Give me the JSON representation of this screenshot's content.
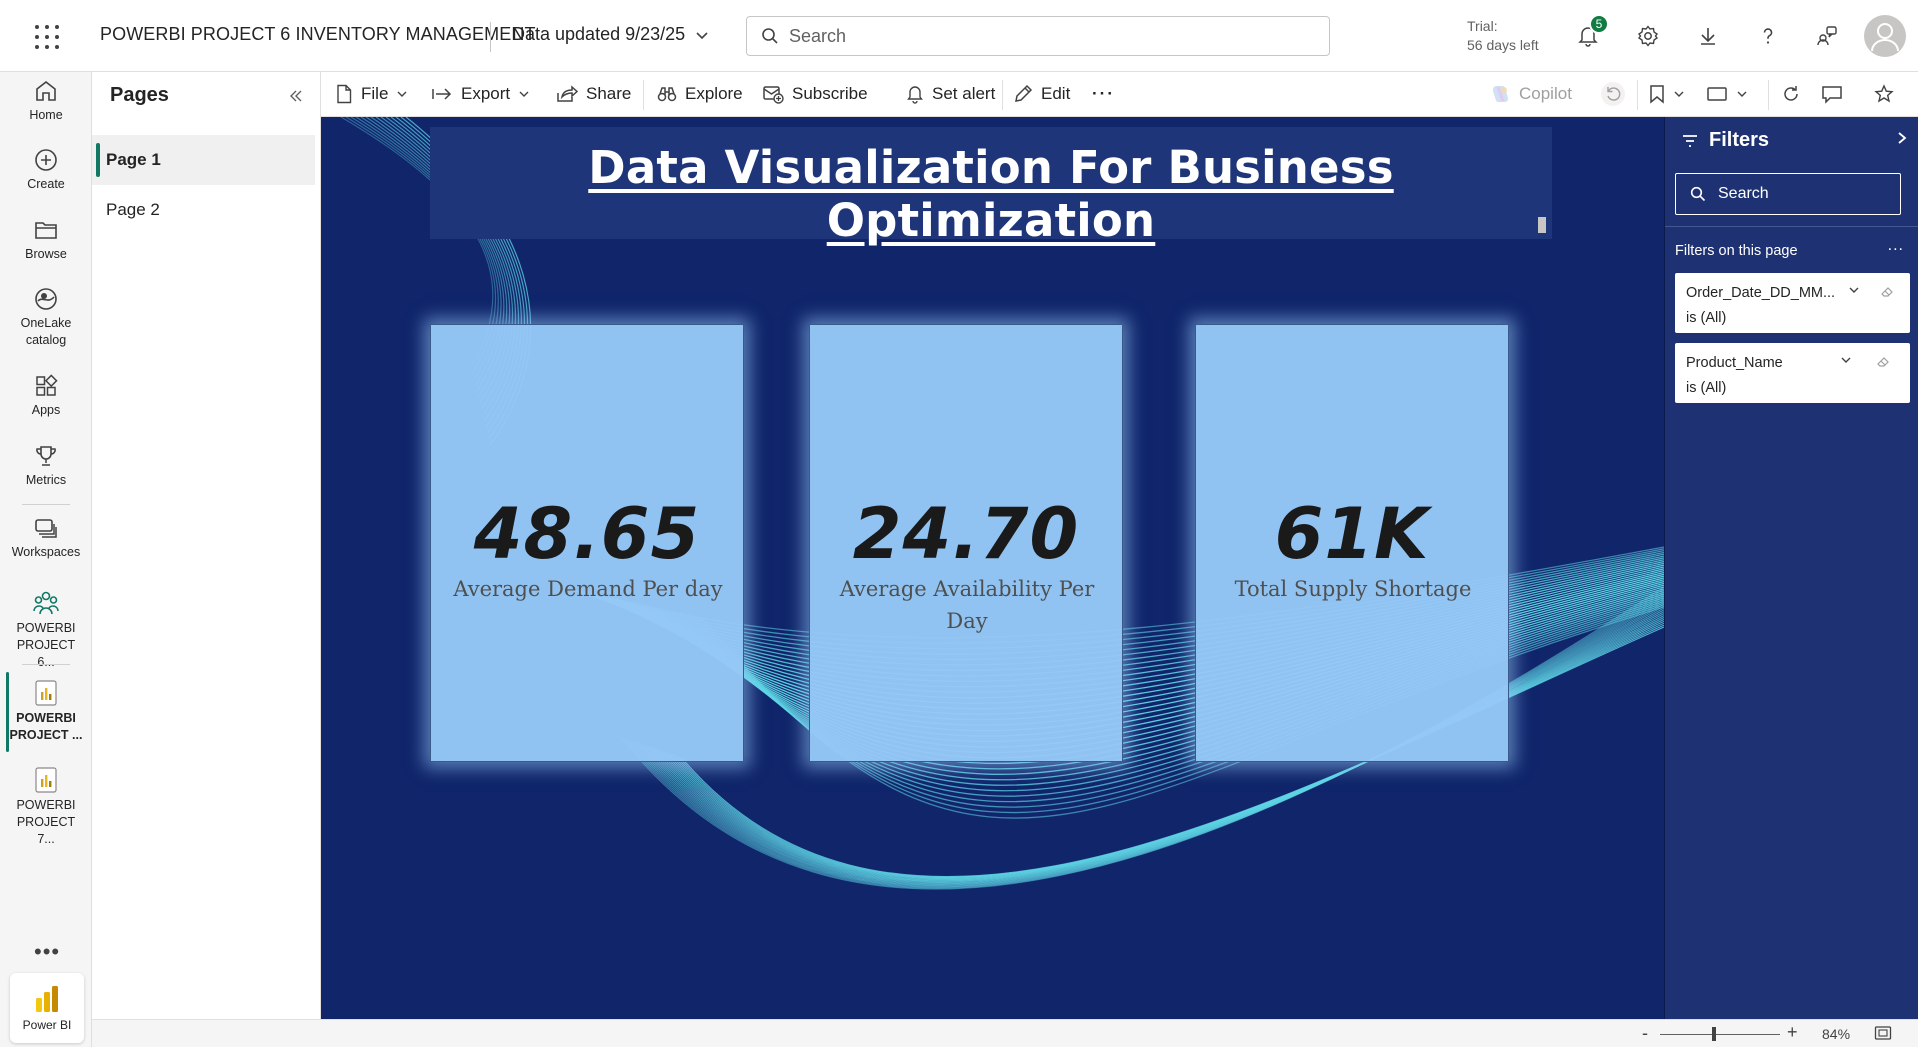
{
  "header": {
    "app_title": "POWERBI PROJECT 6 INVENTORY MANAGEMENT",
    "data_updated": "Data updated 9/23/25",
    "search_placeholder": "Search",
    "trial_label": "Trial:",
    "trial_days": "56 days left",
    "notification_count": "5"
  },
  "rail": {
    "items": [
      {
        "label": "Home",
        "icon": "home-icon"
      },
      {
        "label": "Create",
        "icon": "plus-circle-icon"
      },
      {
        "label": "Browse",
        "icon": "folder-icon"
      },
      {
        "label": "OneLake catalog",
        "icon": "onelake-icon"
      },
      {
        "label": "Apps",
        "icon": "apps-icon"
      },
      {
        "label": "Metrics",
        "icon": "trophy-icon"
      },
      {
        "label": "Workspaces",
        "icon": "workspaces-icon"
      },
      {
        "label": "POWERBI PROJECT 6...",
        "icon": "workspace-people-icon"
      },
      {
        "label": "POWERBI PROJECT ...",
        "icon": "report-icon"
      },
      {
        "label": "POWERBI PROJECT 7...",
        "icon": "report-icon"
      }
    ],
    "more": "•••",
    "powerbi_label": "Power BI"
  },
  "pages_pane": {
    "title": "Pages",
    "pages": [
      "Page 1",
      "Page 2"
    ],
    "active_index": 0
  },
  "toolbar": {
    "file": "File",
    "export": "Export",
    "share": "Share",
    "explore": "Explore",
    "subscribe": "Subscribe",
    "set_alert": "Set alert",
    "edit": "Edit",
    "more": "···",
    "copilot": "Copilot"
  },
  "report": {
    "title": "Data Visualization For Business Optimization",
    "kpis": [
      {
        "value": "48.65",
        "label": "Average Demand Per day"
      },
      {
        "value": "24.70",
        "label": "Average Availability Per Day"
      },
      {
        "value": "61K",
        "label": "Total Supply Shortage"
      }
    ]
  },
  "filters": {
    "title": "Filters",
    "search_placeholder": "Search",
    "on_this_page": "Filters on this page",
    "more": "...",
    "cards": [
      {
        "name": "Order_Date_DD_MM...",
        "state": "is (All)"
      },
      {
        "name": "Product_Name",
        "state": "is (All)"
      }
    ]
  },
  "statusbar": {
    "zoom_minus": "-",
    "zoom_plus": "+",
    "zoom": "84%"
  },
  "colors": {
    "canvas_bg": "#10256a",
    "card_bg": "#96c8f7",
    "accent": "#117865",
    "filters_bg": "#1e3273",
    "wave": "#5fd6e6"
  }
}
